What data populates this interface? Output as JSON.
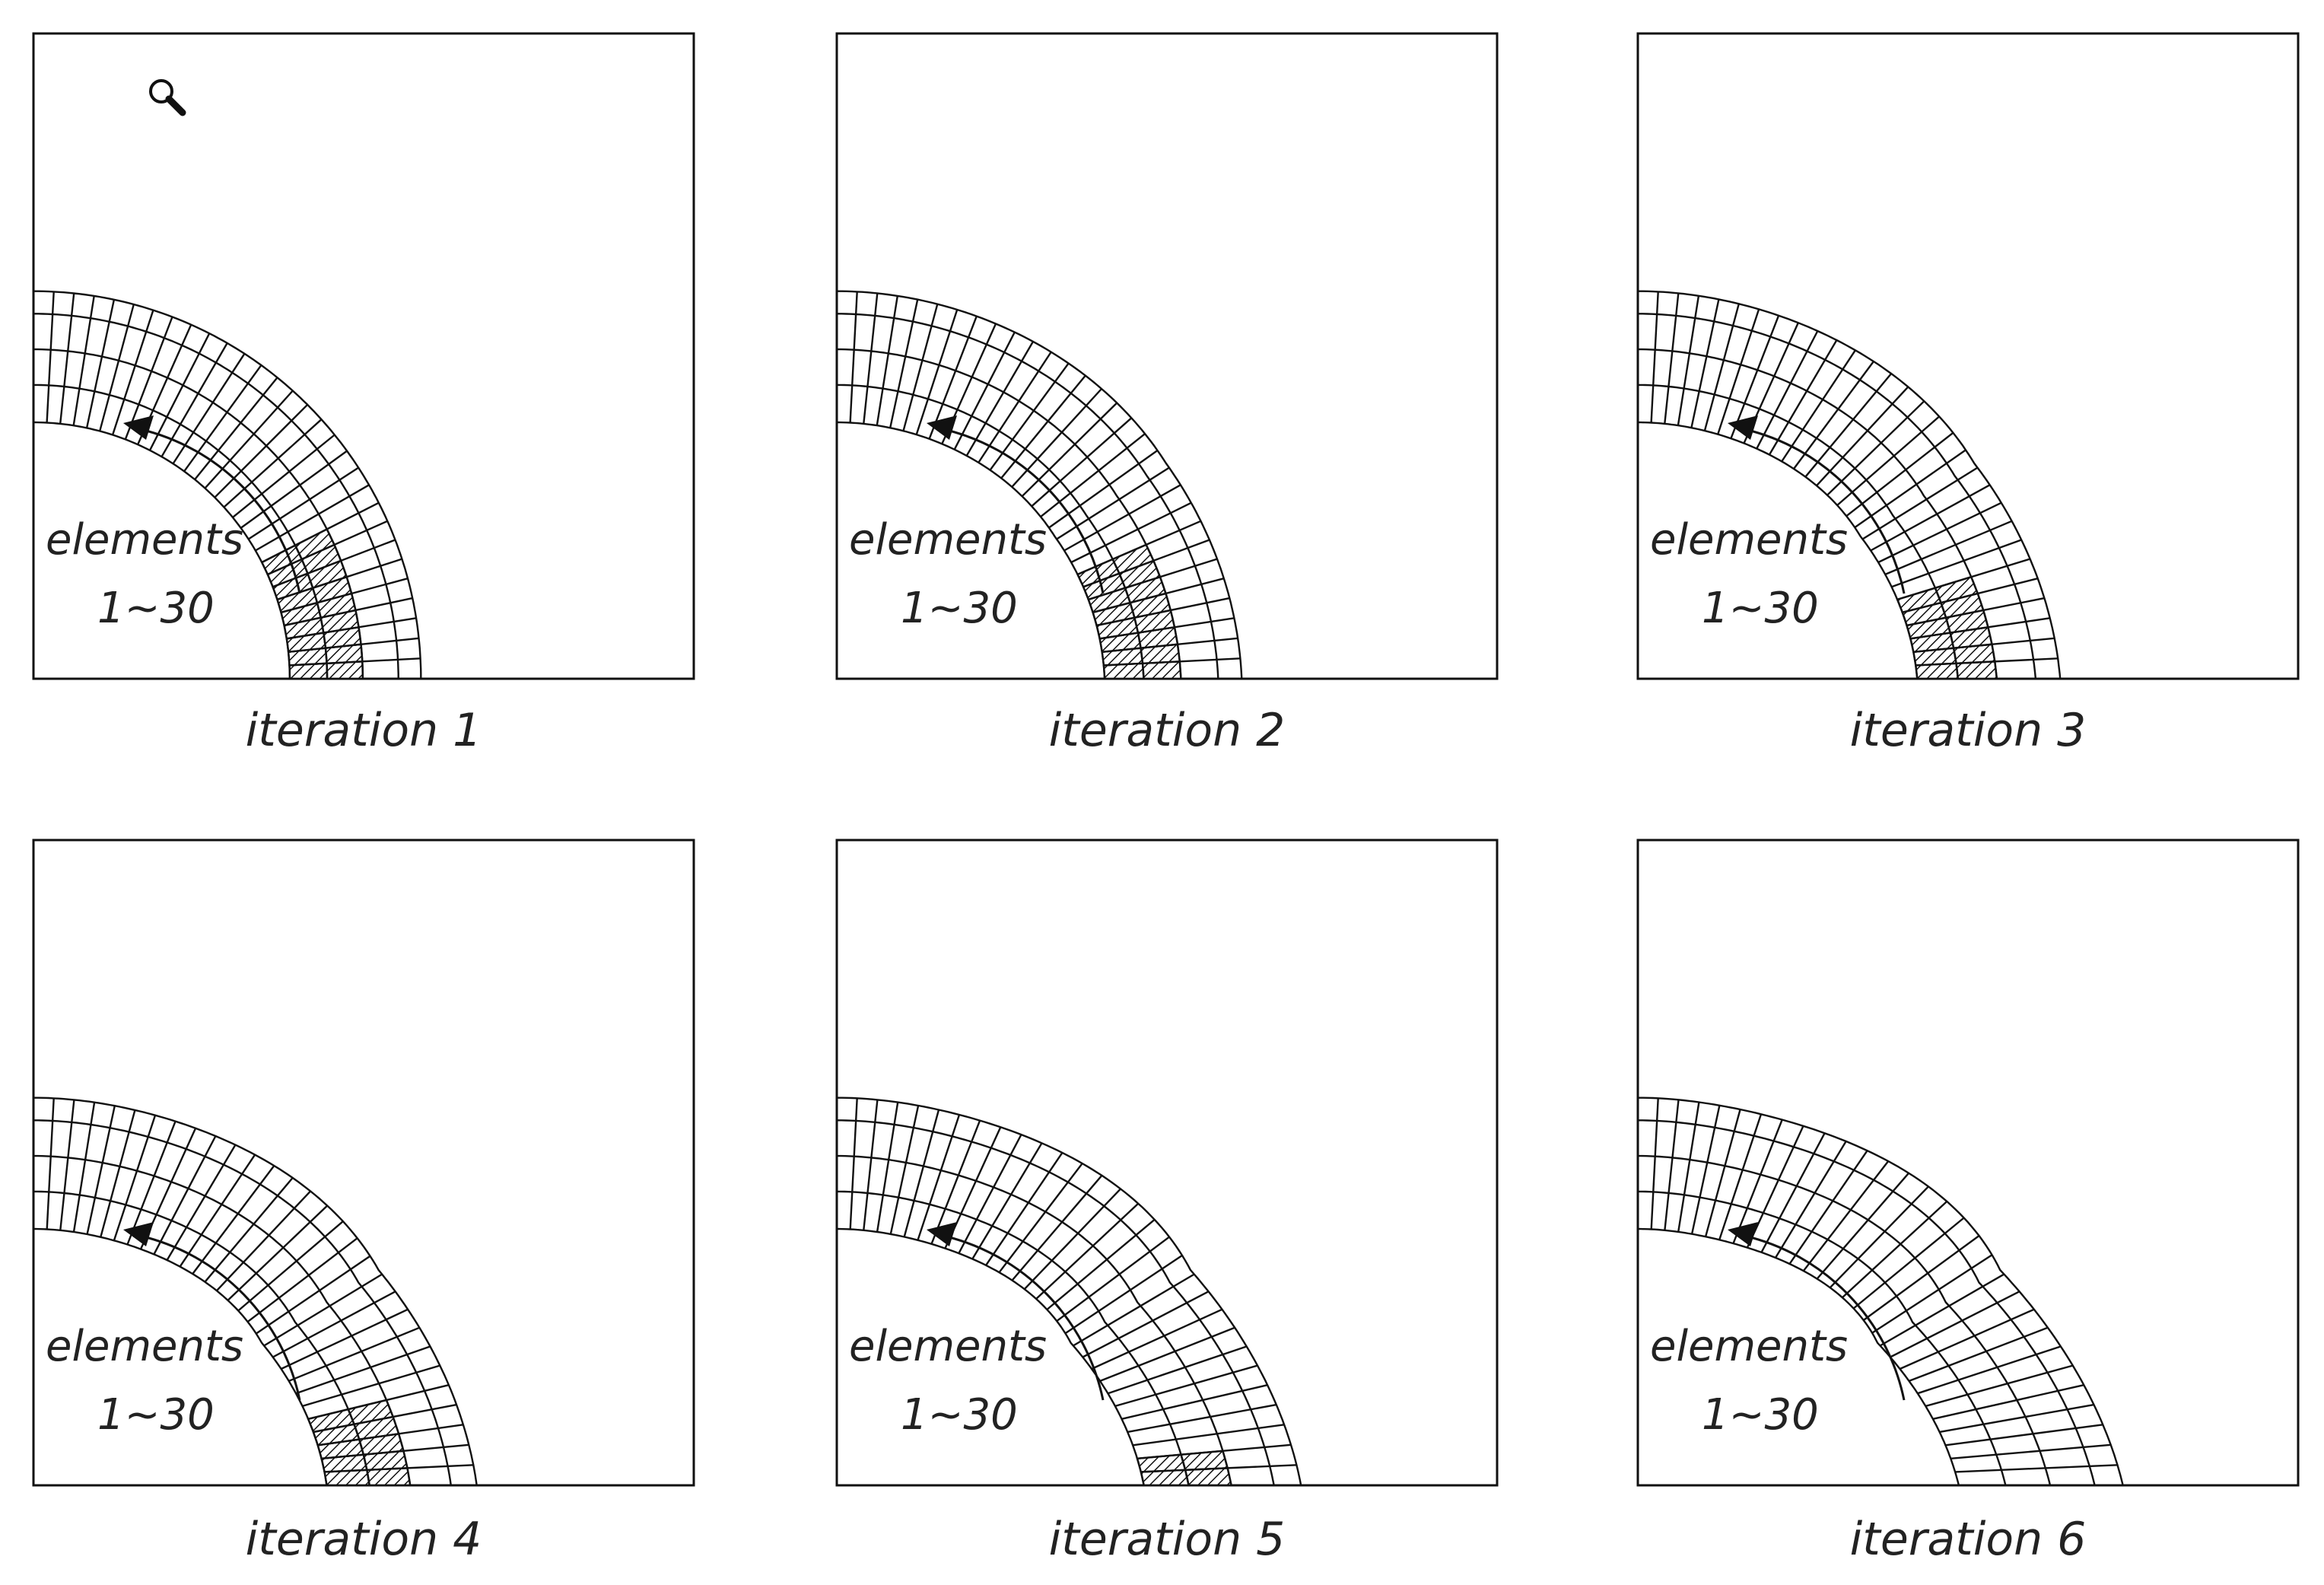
{
  "panels": [
    {
      "caption": "iteration 1",
      "label_elements": "elements",
      "label_range": "1~30"
    },
    {
      "caption": "iteration 2",
      "label_elements": "elements",
      "label_range": "1~30"
    },
    {
      "caption": "iteration 3",
      "label_elements": "elements",
      "label_range": "1~30"
    },
    {
      "caption": "iteration 4",
      "label_elements": "elements",
      "label_range": "1~30"
    },
    {
      "caption": "iteration 5",
      "label_elements": "elements",
      "label_range": "1~30"
    },
    {
      "caption": "iteration 6",
      "label_elements": "elements",
      "label_range": "1~30"
    }
  ],
  "icons": {
    "zoom": "magnifier-icon"
  }
}
